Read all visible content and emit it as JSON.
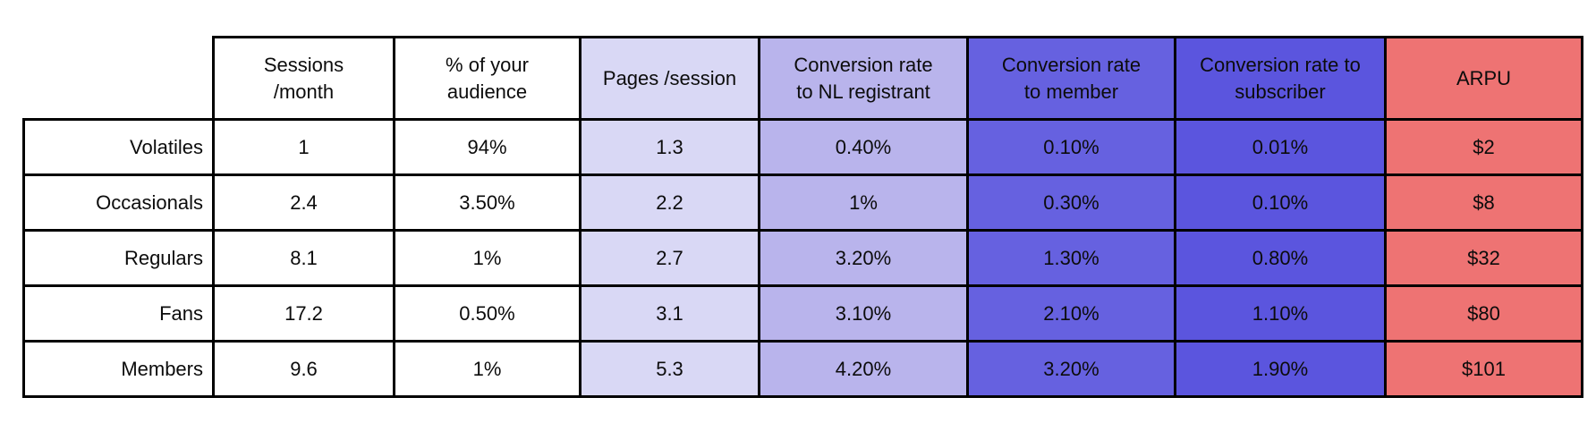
{
  "chart_data": {
    "type": "table",
    "columns": [
      {
        "label": "Sessions\n/month",
        "bg": "#ffffff"
      },
      {
        "label": "% of your\naudience",
        "bg": "#ffffff"
      },
      {
        "label": "Pages /session",
        "bg": "#d9d8f5"
      },
      {
        "label": "Conversion rate\nto NL registrant",
        "bg": "#b9b4ec"
      },
      {
        "label": "Conversion rate\nto member",
        "bg": "#6661e0"
      },
      {
        "label": "Conversion rate to\nsubscriber",
        "bg": "#5b55de"
      },
      {
        "label": "ARPU",
        "bg": "#ee7373"
      }
    ],
    "rows": [
      {
        "label": "Volatiles",
        "values": [
          "1",
          "94%",
          "1.3",
          "0.40%",
          "0.10%",
          "0.01%",
          "$2"
        ]
      },
      {
        "label": "Occasionals",
        "values": [
          "2.4",
          "3.50%",
          "2.2",
          "1%",
          "0.30%",
          "0.10%",
          "$8"
        ]
      },
      {
        "label": "Regulars",
        "values": [
          "8.1",
          "1%",
          "2.7",
          "3.20%",
          "1.30%",
          "0.80%",
          "$32"
        ]
      },
      {
        "label": "Fans",
        "values": [
          "17.2",
          "0.50%",
          "3.1",
          "3.10%",
          "2.10%",
          "1.10%",
          "$80"
        ]
      },
      {
        "label": "Members",
        "values": [
          "9.6",
          "1%",
          "5.3",
          "4.20%",
          "3.20%",
          "1.90%",
          "$101"
        ]
      }
    ],
    "colors": {
      "pages_per_session_bg": "#d9d8f5",
      "conversion_nl_registrant_bg": "#b9b4ec",
      "conversion_member_bg": "#6661e0",
      "conversion_subscriber_bg": "#5b55de",
      "arpu_bg": "#ee7373",
      "border": "#000000",
      "text": "#0c0c0c"
    }
  }
}
